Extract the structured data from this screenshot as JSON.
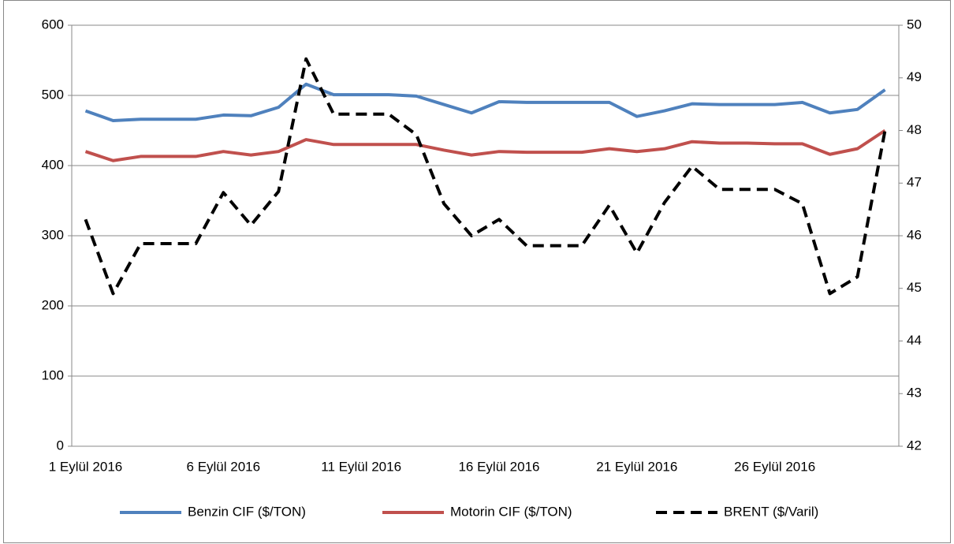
{
  "chart_data": {
    "type": "line",
    "categories": [
      "1 Eylül 2016",
      null,
      null,
      null,
      null,
      "6 Eylül 2016",
      null,
      null,
      null,
      null,
      "11 Eylül 2016",
      null,
      null,
      null,
      null,
      "16 Eylül 2016",
      null,
      null,
      null,
      null,
      "21 Eylül 2016",
      null,
      null,
      null,
      null,
      "26 Eylül 2016",
      null,
      null,
      null,
      null
    ],
    "series": [
      {
        "name": "Benzin CIF ($/TON)",
        "color": "#4f81bd",
        "axis": "y",
        "values": [
          478,
          464,
          466,
          466,
          466,
          472,
          471,
          483,
          516,
          501,
          501,
          501,
          499,
          487,
          475,
          491,
          490,
          490,
          490,
          490,
          470,
          478,
          488,
          487,
          487,
          487,
          490,
          475,
          480,
          508
        ]
      },
      {
        "name": "Motorin CIF ($/TON)",
        "color": "#c0504d",
        "axis": "y",
        "values": [
          420,
          407,
          413,
          413,
          413,
          420,
          415,
          420,
          437,
          430,
          430,
          430,
          430,
          422,
          415,
          420,
          419,
          419,
          419,
          424,
          420,
          424,
          434,
          432,
          432,
          431,
          431,
          416,
          424,
          450
        ]
      },
      {
        "name": "BRENT ($/Varil)",
        "color": "#000000",
        "axis": "y2",
        "dashed": true,
        "values": [
          46.31,
          44.9,
          45.85,
          45.85,
          45.85,
          46.82,
          46.2,
          46.84,
          49.36,
          48.31,
          48.31,
          48.31,
          47.92,
          46.61,
          46.0,
          46.31,
          45.81,
          45.81,
          45.81,
          46.58,
          45.67,
          46.63,
          47.32,
          46.88,
          46.88,
          46.88,
          46.61,
          44.9,
          45.22,
          48.0
        ]
      }
    ],
    "ylim": [
      0,
      600
    ],
    "yticks": [
      0,
      100,
      200,
      300,
      400,
      500,
      600
    ],
    "y2lim": [
      42,
      50
    ],
    "y2ticks": [
      42,
      43,
      44,
      45,
      46,
      47,
      48,
      49,
      50
    ],
    "grid": true,
    "legend": "bottom"
  }
}
